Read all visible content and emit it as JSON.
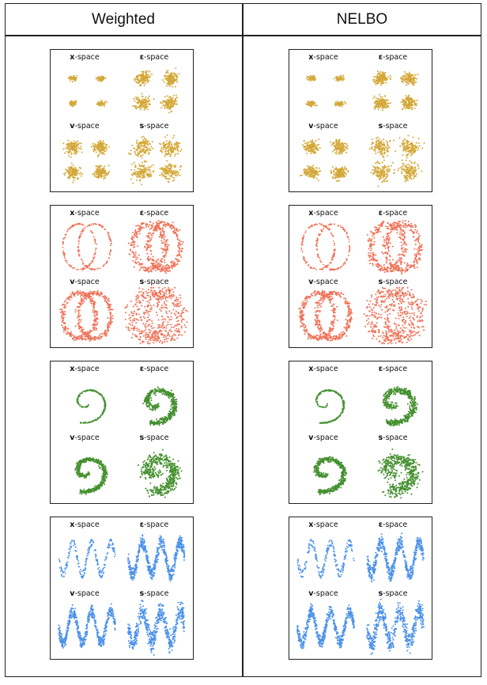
{
  "columns": [
    "Weighted",
    "NELBO"
  ],
  "subplot_labels": [
    {
      "prefix": "x",
      "suffix": "-space"
    },
    {
      "prefix": "ε",
      "suffix": "-space"
    },
    {
      "prefix": "v",
      "suffix": "-space"
    },
    {
      "prefix": "s",
      "suffix": "-space"
    }
  ],
  "rows": [
    {
      "dataset": "gaussian-grid",
      "color": "#d4a838"
    },
    {
      "dataset": "rings",
      "color": "#f07055"
    },
    {
      "dataset": "spiral",
      "color": "#459030"
    },
    {
      "dataset": "sine",
      "color": "#4a90ea"
    }
  ]
}
